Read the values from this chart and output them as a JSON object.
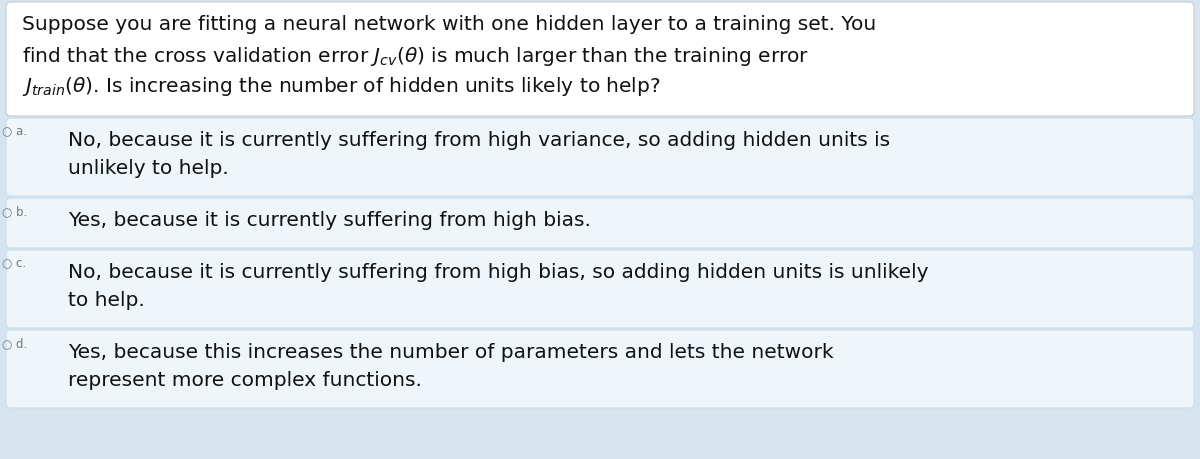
{
  "bg_color": "#d6e4f0",
  "question_box_color": "#ffffff",
  "option_box_color": "#eef5fb",
  "option_box_border": "#c8dcea",
  "text_color": "#111111",
  "label_color": "#777777",
  "q_line1": "Suppose you are fitting a neural network with one hidden layer to a training set. You",
  "q_line2": "find that the cross validation error $J_{cv}(\\theta)$ is much larger than the training error",
  "q_line3": "$J_{train}(\\theta)$. Is increasing the number of hidden units likely to help?",
  "opt_a_line1": "No, because it is currently suffering from high variance, so adding hidden units is",
  "opt_a_line2": "unlikely to help.",
  "opt_b_line1": "Yes, because it is currently suffering from high bias.",
  "opt_c_line1": "No, because it is currently suffering from high bias, so adding hidden units is unlikely",
  "opt_c_line2": "to help.",
  "opt_d_line1": "Yes, because this increases the number of parameters and lets the network",
  "opt_d_line2": "represent more complex functions.",
  "font_size_q": 14.5,
  "font_size_opt": 14.5,
  "font_size_label": 8.5
}
